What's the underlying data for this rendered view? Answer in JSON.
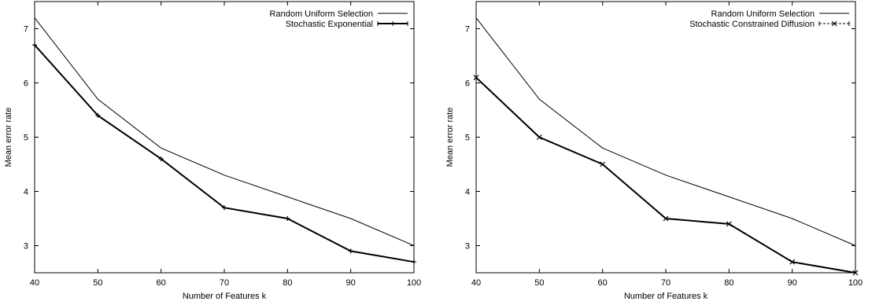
{
  "chart_data": [
    {
      "type": "line",
      "xlabel": "Number of Features k",
      "ylabel": "Mean error rate",
      "xlim": [
        40,
        100
      ],
      "ylim": [
        2.5,
        7.5
      ],
      "x": [
        40,
        50,
        60,
        70,
        80,
        90,
        100
      ],
      "xticks": [
        "40",
        "50",
        "60",
        "70",
        "80",
        "90",
        "100"
      ],
      "yticks": [
        "3",
        "4",
        "5",
        "6",
        "7"
      ],
      "legend_position": "top-right",
      "grid": false,
      "series": [
        {
          "name": "Random Uniform Selection",
          "style": "solid",
          "marker": "none",
          "values": [
            7.2,
            5.7,
            4.8,
            4.3,
            3.9,
            3.5,
            3.0
          ]
        },
        {
          "name": "Stochastic Exponential",
          "style": "solid-bold",
          "marker": "errorbar",
          "values": [
            6.7,
            5.4,
            4.6,
            3.7,
            3.5,
            2.9,
            2.7
          ]
        }
      ]
    },
    {
      "type": "line",
      "xlabel": "Number of Features k",
      "ylabel": "Mean error rate",
      "xlim": [
        40,
        100
      ],
      "ylim": [
        2.5,
        7.5
      ],
      "x": [
        40,
        50,
        60,
        70,
        80,
        90,
        100
      ],
      "xticks": [
        "40",
        "50",
        "60",
        "70",
        "80",
        "90",
        "100"
      ],
      "yticks": [
        "3",
        "4",
        "5",
        "6",
        "7"
      ],
      "legend_position": "top-right",
      "grid": false,
      "series": [
        {
          "name": "Random Uniform Selection",
          "style": "solid",
          "marker": "none",
          "values": [
            7.2,
            5.7,
            4.8,
            4.3,
            3.9,
            3.5,
            3.0
          ]
        },
        {
          "name": "Stochastic Constrained Diffusion",
          "style": "solid-bold",
          "marker": "x",
          "values": [
            6.1,
            5.0,
            4.5,
            3.5,
            3.4,
            2.7,
            2.5
          ]
        }
      ]
    }
  ]
}
